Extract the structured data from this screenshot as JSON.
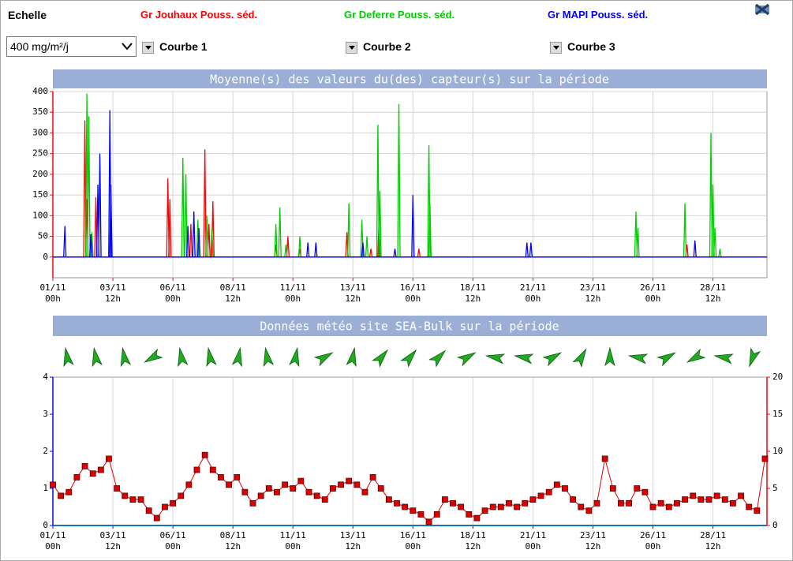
{
  "controls": {
    "scale_label": "Echelle",
    "scale_value": "400 mg/m²/j",
    "curves": [
      "Courbe 1",
      "Courbe 2",
      "Courbe 3"
    ]
  },
  "chart_data": [
    {
      "type": "line",
      "title": "Moyenne(s) des valeurs du(des) capteur(s) sur la période",
      "xlim": [
        0,
        714
      ],
      "ylim": [
        -50,
        400
      ],
      "yticks": [
        0,
        50,
        100,
        150,
        200,
        250,
        300,
        350,
        400
      ],
      "xticks": [
        {
          "value": 0,
          "label": "01/11\n00h"
        },
        {
          "value": 60,
          "label": "03/11\n12h"
        },
        {
          "value": 120,
          "label": "06/11\n00h"
        },
        {
          "value": 180,
          "label": "08/11\n12h"
        },
        {
          "value": 240,
          "label": "11/11\n00h"
        },
        {
          "value": 300,
          "label": "13/11\n12h"
        },
        {
          "value": 360,
          "label": "16/11\n00h"
        },
        {
          "value": 420,
          "label": "18/11\n12h"
        },
        {
          "value": 480,
          "label": "21/11\n00h"
        },
        {
          "value": 540,
          "label": "23/11\n12h"
        },
        {
          "value": 600,
          "label": "26/11\n00h"
        },
        {
          "value": 660,
          "label": "28/11\n12h"
        }
      ],
      "grid": true,
      "axis_color": "#ff0000",
      "series": [
        {
          "name": "Gr Jouhaux Pouss. séd.",
          "color": "#ff0000",
          "x": [
            32,
            34,
            43,
            115,
            117,
            138,
            152,
            156,
            160,
            223,
            235,
            247,
            294,
            318,
            326,
            366,
            634
          ],
          "values": [
            330,
            140,
            145,
            190,
            140,
            80,
            260,
            80,
            135,
            30,
            50,
            20,
            60,
            20,
            80,
            20,
            30
          ]
        },
        {
          "name": "Gr Deferre Pouss. séd.",
          "color": "#00cc00",
          "x": [
            34,
            36,
            39,
            130,
            133,
            145,
            154,
            159,
            223,
            227,
            233,
            247,
            296,
            309,
            314,
            325,
            327,
            346,
            376,
            377,
            583,
            585,
            632,
            658,
            660,
            662,
            667
          ],
          "values": [
            395,
            340,
            60,
            240,
            200,
            90,
            100,
            70,
            80,
            120,
            30,
            50,
            130,
            90,
            50,
            320,
            160,
            370,
            270,
            130,
            110,
            70,
            130,
            300,
            175,
            70,
            20
          ]
        },
        {
          "name": "Gr MAPI Pouss. séd.",
          "color": "#0000ff",
          "x": [
            12,
            38,
            45,
            47,
            57,
            58,
            135,
            141,
            146,
            255,
            263,
            310,
            342,
            360,
            474,
            478,
            642
          ],
          "values": [
            75,
            55,
            175,
            250,
            355,
            175,
            75,
            110,
            70,
            35,
            35,
            35,
            20,
            150,
            35,
            35,
            40
          ]
        }
      ]
    },
    {
      "type": "scatter",
      "title": "Données météo site SEA-Bulk sur la période",
      "xlim": [
        0,
        714
      ],
      "ylim": [
        0,
        4
      ],
      "yticks": [
        0,
        1,
        2,
        3,
        4
      ],
      "y2lim": [
        0,
        20
      ],
      "y2ticks": [
        0,
        5,
        10,
        15,
        20
      ],
      "xticks": [
        {
          "value": 0,
          "label": "01/11\n00h"
        },
        {
          "value": 60,
          "label": "03/11\n12h"
        },
        {
          "value": 120,
          "label": "06/11\n00h"
        },
        {
          "value": 180,
          "label": "08/11\n12h"
        },
        {
          "value": 240,
          "label": "11/11\n00h"
        },
        {
          "value": 300,
          "label": "13/11\n12h"
        },
        {
          "value": 360,
          "label": "16/11\n00h"
        },
        {
          "value": 420,
          "label": "18/11\n12h"
        },
        {
          "value": 480,
          "label": "21/11\n00h"
        },
        {
          "value": 540,
          "label": "23/11\n12h"
        },
        {
          "value": 600,
          "label": "26/11\n00h"
        },
        {
          "value": 660,
          "label": "28/11\n12h"
        }
      ],
      "grid": true,
      "axis_color": "#0000ff",
      "y2_axis_color": "#ff0000",
      "wind_color": "#22aa22",
      "wind_directions": [
        350,
        350,
        350,
        240,
        350,
        350,
        10,
        350,
        10,
        60,
        10,
        40,
        40,
        45,
        60,
        280,
        280,
        60,
        30,
        0,
        280,
        60,
        240,
        280,
        200
      ],
      "series": [
        {
          "color": "#dd0000",
          "axis": "y2",
          "x": [
            0,
            8,
            16,
            24,
            32,
            40,
            48,
            56,
            64,
            72,
            80,
            88,
            96,
            104,
            112,
            120,
            128,
            136,
            144,
            152,
            160,
            168,
            176,
            184,
            192,
            200,
            208,
            216,
            224,
            232,
            240,
            248,
            256,
            264,
            272,
            280,
            288,
            296,
            304,
            312,
            320,
            328,
            336,
            344,
            352,
            360,
            368,
            376,
            384,
            392,
            400,
            408,
            416,
            424,
            432,
            440,
            448,
            456,
            464,
            472,
            480,
            488,
            496,
            504,
            512,
            520,
            528,
            536,
            544,
            552,
            560,
            568,
            576,
            584,
            592,
            600,
            608,
            616,
            624,
            632,
            640,
            648,
            656,
            664,
            672,
            680,
            688,
            696,
            704,
            712
          ],
          "values": [
            5.5,
            4,
            4.5,
            6.5,
            8,
            7,
            7.5,
            9,
            5,
            4,
            3.5,
            3.5,
            2,
            1,
            2.5,
            3,
            4,
            5.5,
            7.5,
            9.5,
            7.5,
            6.5,
            5.5,
            6.5,
            4.5,
            3,
            4,
            5,
            4.5,
            5.5,
            5,
            6,
            4.5,
            4,
            3.5,
            5,
            5.5,
            6,
            5.5,
            4.5,
            6.5,
            5,
            3.5,
            3,
            2.5,
            2,
            1.5,
            0.5,
            1.5,
            3.5,
            3,
            2.5,
            1.5,
            1,
            2,
            2.5,
            2.5,
            3,
            2.5,
            3,
            3.5,
            4,
            4.5,
            5.5,
            5,
            3.5,
            2.5,
            2,
            3,
            9,
            5,
            3,
            3,
            5,
            4.5,
            2.5,
            3,
            2.5,
            3,
            3.5,
            4,
            3.5,
            3.5,
            4,
            3.5,
            3,
            4,
            2.5,
            2,
            9
          ]
        }
      ]
    }
  ]
}
